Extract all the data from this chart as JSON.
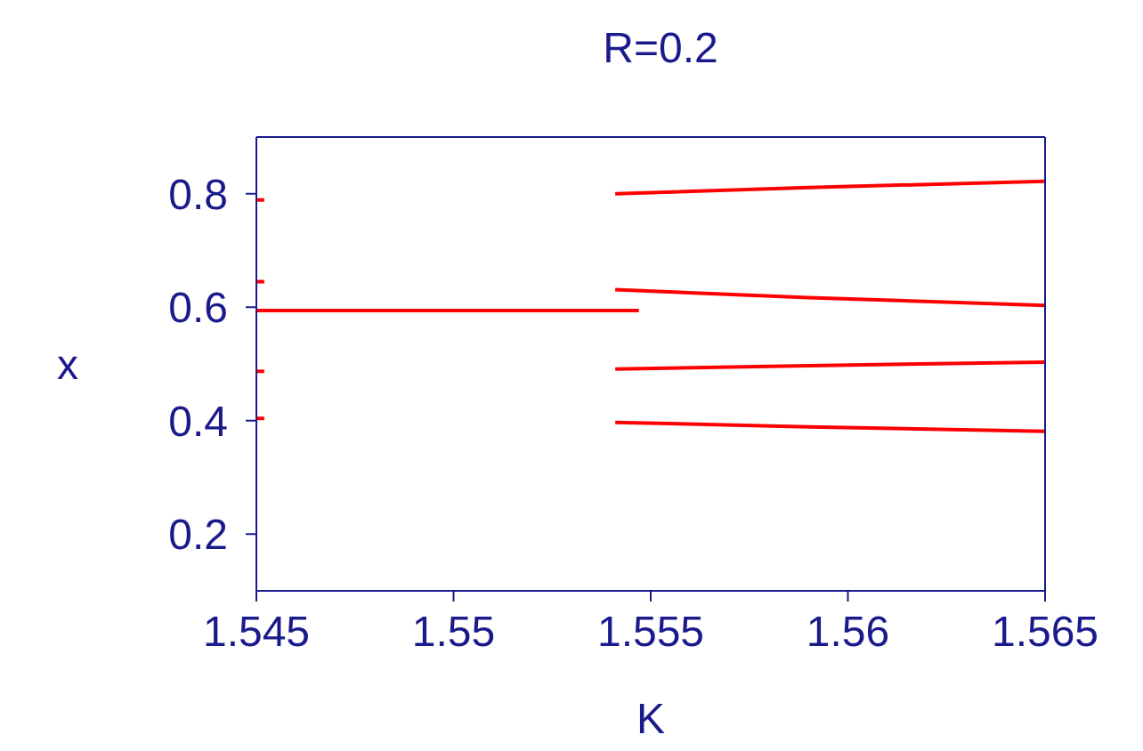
{
  "chart_data": {
    "type": "line",
    "title": "R=0.2",
    "xlabel": "K",
    "ylabel": "x",
    "xlim": [
      1.545,
      1.565
    ],
    "xticks": [
      1.545,
      1.55,
      1.555,
      1.56,
      1.565
    ],
    "ylim": [
      0.1,
      0.9
    ],
    "yticks": [
      0.2,
      0.4,
      0.6,
      0.8
    ],
    "grid": false,
    "marker": "none",
    "series": [
      {
        "color": "#ff0000",
        "x": [
          1.545,
          1.5547
        ],
        "values": [
          0.594,
          0.594
        ]
      },
      {
        "color": "#ff0000",
        "x": [
          1.5541,
          1.559,
          1.565
        ],
        "values": [
          0.8,
          0.811,
          0.822
        ]
      },
      {
        "color": "#ff0000",
        "x": [
          1.5541,
          1.559,
          1.565
        ],
        "values": [
          0.631,
          0.617,
          0.603
        ]
      },
      {
        "color": "#ff0000",
        "x": [
          1.5541,
          1.559,
          1.565
        ],
        "values": [
          0.491,
          0.497,
          0.503
        ]
      },
      {
        "color": "#ff0000",
        "x": [
          1.5541,
          1.559,
          1.565
        ],
        "values": [
          0.397,
          0.389,
          0.381
        ]
      },
      {
        "color": "#ff0000",
        "x": [
          1.545,
          1.5452
        ],
        "values": [
          0.789,
          0.789
        ]
      },
      {
        "color": "#ff0000",
        "x": [
          1.545,
          1.5452
        ],
        "values": [
          0.645,
          0.645
        ]
      },
      {
        "color": "#ff0000",
        "x": [
          1.545,
          1.5452
        ],
        "values": [
          0.487,
          0.487
        ]
      },
      {
        "color": "#ff0000",
        "x": [
          1.545,
          1.5452
        ],
        "values": [
          0.404,
          0.404
        ]
      }
    ]
  }
}
